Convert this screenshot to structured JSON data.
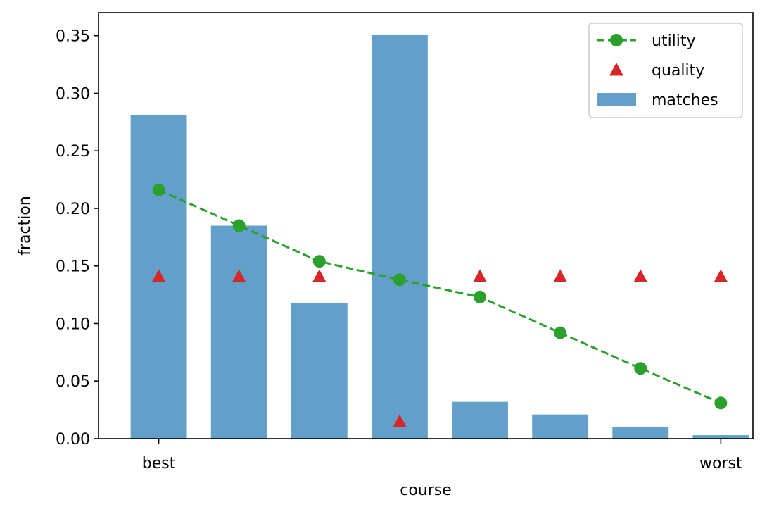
{
  "chart_data": {
    "type": "bar",
    "title": "",
    "xlabel": "course",
    "ylabel": "fraction",
    "x": [
      1,
      2,
      3,
      4,
      5,
      6,
      7,
      8
    ],
    "xtick_values": [
      1,
      8
    ],
    "xtick_labels": [
      "best",
      "worst"
    ],
    "ylim": [
      0,
      0.37
    ],
    "yticks": [
      "0.00",
      "0.05",
      "0.10",
      "0.15",
      "0.20",
      "0.25",
      "0.30",
      "0.35"
    ],
    "legend_position": "top-right",
    "grid": false,
    "series": [
      {
        "name": "utility",
        "kind": "line",
        "style": "dashed",
        "marker": "circle",
        "color": "#2ca02c",
        "values": [
          0.216,
          0.185,
          0.154,
          0.138,
          0.123,
          0.092,
          0.061,
          0.031
        ]
      },
      {
        "name": "quality",
        "kind": "scatter",
        "marker": "triangle",
        "color": "#d62728",
        "values": [
          0.141,
          0.141,
          0.141,
          0.015,
          0.141,
          0.141,
          0.141,
          0.141
        ]
      },
      {
        "name": "matches",
        "kind": "bar",
        "color": "#62a0ca",
        "values": [
          0.281,
          0.185,
          0.118,
          0.351,
          0.032,
          0.021,
          0.01,
          0.003
        ]
      }
    ]
  }
}
